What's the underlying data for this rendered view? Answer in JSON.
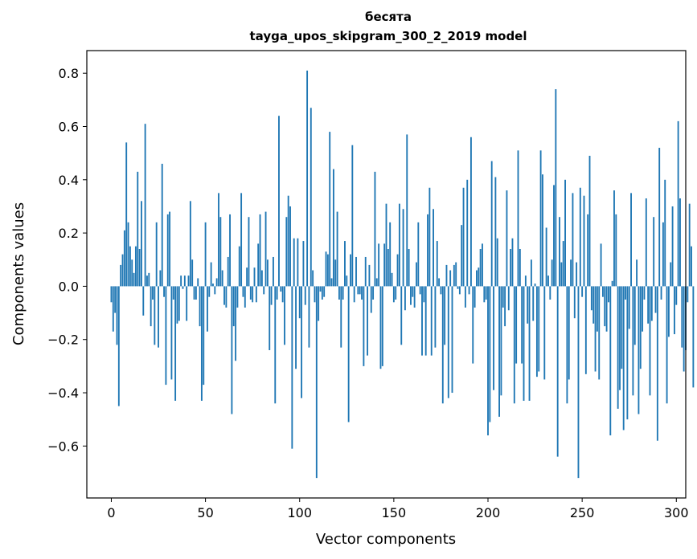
{
  "chart_data": {
    "type": "bar",
    "title_line1": "бесята",
    "title_line2": "tayga_upos_skipgram_300_2_2019 model",
    "xlabel": "Vector components",
    "ylabel": "Components values",
    "xlim": [
      -13,
      305
    ],
    "ylim": [
      -0.795,
      0.885
    ],
    "xticks": [
      0,
      50,
      100,
      150,
      200,
      250,
      300
    ],
    "xtick_labels": [
      "0",
      "50",
      "100",
      "150",
      "200",
      "250",
      "300"
    ],
    "yticks": [
      -0.6,
      -0.4,
      -0.2,
      0.0,
      0.2,
      0.4,
      0.6,
      0.8
    ],
    "ytick_labels": [
      "−0.6",
      "−0.4",
      "−0.2",
      "0.0",
      "0.2",
      "0.4",
      "0.6",
      "0.8"
    ],
    "bar_color": "#1f77b4",
    "values": [
      -0.06,
      -0.17,
      -0.1,
      -0.22,
      -0.45,
      0.08,
      0.12,
      0.21,
      0.54,
      0.24,
      0.15,
      0.1,
      0.05,
      0.15,
      0.43,
      0.14,
      0.32,
      -0.11,
      0.61,
      0.04,
      0.05,
      -0.15,
      -0.05,
      -0.22,
      0.24,
      -0.23,
      0.06,
      0.46,
      -0.04,
      -0.37,
      0.27,
      0.28,
      -0.35,
      -0.05,
      -0.43,
      -0.14,
      -0.13,
      0.04,
      -0.01,
      0.04,
      -0.13,
      0.04,
      0.32,
      0.1,
      -0.05,
      -0.05,
      0.03,
      -0.15,
      -0.43,
      -0.37,
      0.24,
      -0.17,
      -0.04,
      0.09,
      0.01,
      -0.03,
      0.03,
      0.35,
      0.26,
      0.06,
      -0.07,
      -0.08,
      0.11,
      0.27,
      -0.48,
      -0.15,
      -0.28,
      -0.08,
      0.15,
      0.35,
      -0.04,
      -0.08,
      0.07,
      0.26,
      -0.05,
      -0.06,
      0.07,
      -0.06,
      0.16,
      0.27,
      0.06,
      -0.03,
      0.28,
      0.1,
      -0.24,
      -0.07,
      0.11,
      -0.44,
      -0.05,
      0.64,
      -0.02,
      -0.06,
      -0.22,
      0.26,
      0.34,
      0.3,
      -0.61,
      0.18,
      -0.31,
      0.18,
      -0.12,
      -0.42,
      0.17,
      -0.07,
      0.81,
      -0.23,
      0.67,
      0.06,
      -0.06,
      -0.72,
      -0.13,
      -0.02,
      -0.05,
      -0.04,
      0.13,
      0.12,
      0.58,
      0.03,
      0.44,
      0.1,
      0.28,
      -0.05,
      -0.23,
      -0.05,
      0.17,
      0.04,
      -0.51,
      0.12,
      0.53,
      -0.06,
      0.11,
      -0.03,
      -0.03,
      -0.05,
      -0.3,
      0.11,
      -0.26,
      0.08,
      -0.1,
      -0.05,
      0.43,
      0.03,
      0.16,
      -0.31,
      -0.3,
      0.16,
      0.31,
      0.14,
      0.24,
      0.05,
      -0.06,
      -0.05,
      0.12,
      0.31,
      -0.22,
      0.29,
      -0.09,
      0.57,
      0.14,
      -0.07,
      -0.04,
      -0.08,
      0.09,
      0.24,
      -0.03,
      -0.26,
      -0.06,
      -0.26,
      0.27,
      0.37,
      -0.26,
      0.29,
      -0.23,
      0.17,
      0.03,
      -0.03,
      -0.44,
      -0.22,
      0.08,
      -0.42,
      0.06,
      -0.4,
      0.08,
      0.09,
      -0.01,
      -0.03,
      0.23,
      0.37,
      -0.08,
      0.4,
      -0.03,
      0.56,
      -0.29,
      -0.08,
      0.06,
      0.07,
      0.14,
      0.16,
      -0.06,
      -0.05,
      -0.56,
      -0.51,
      0.47,
      -0.39,
      0.41,
      0.18,
      -0.49,
      -0.41,
      -0.08,
      -0.15,
      0.36,
      -0.09,
      0.14,
      0.18,
      -0.44,
      -0.29,
      0.51,
      0.14,
      -0.29,
      -0.43,
      0.04,
      -0.14,
      -0.43,
      0.1,
      -0.13,
      0.01,
      -0.34,
      -0.32,
      0.51,
      0.42,
      -0.35,
      0.22,
      0.04,
      -0.05,
      0.1,
      0.38,
      0.74,
      -0.64,
      0.26,
      0.09,
      0.17,
      0.4,
      -0.44,
      -0.35,
      0.1,
      0.35,
      -0.12,
      0.09,
      -0.72,
      0.37,
      -0.04,
      0.34,
      -0.33,
      0.27,
      0.49,
      -0.09,
      -0.14,
      -0.32,
      -0.17,
      -0.35,
      0.16,
      -0.04,
      -0.15,
      -0.17,
      -0.06,
      -0.56,
      0.02,
      0.36,
      0.27,
      -0.46,
      -0.39,
      -0.31,
      -0.54,
      -0.05,
      -0.5,
      -0.16,
      0.35,
      -0.41,
      -0.22,
      0.1,
      -0.48,
      -0.31,
      -0.17,
      -0.05,
      0.33,
      -0.14,
      -0.41,
      -0.13,
      0.26,
      -0.1,
      -0.58,
      0.52,
      -0.05,
      0.24,
      0.4,
      -0.44,
      -0.19,
      0.09,
      0.3,
      -0.18,
      -0.07,
      0.62,
      0.33,
      -0.23,
      -0.32,
      -0.24,
      -0.06,
      0.31,
      0.15,
      -0.38
    ]
  }
}
